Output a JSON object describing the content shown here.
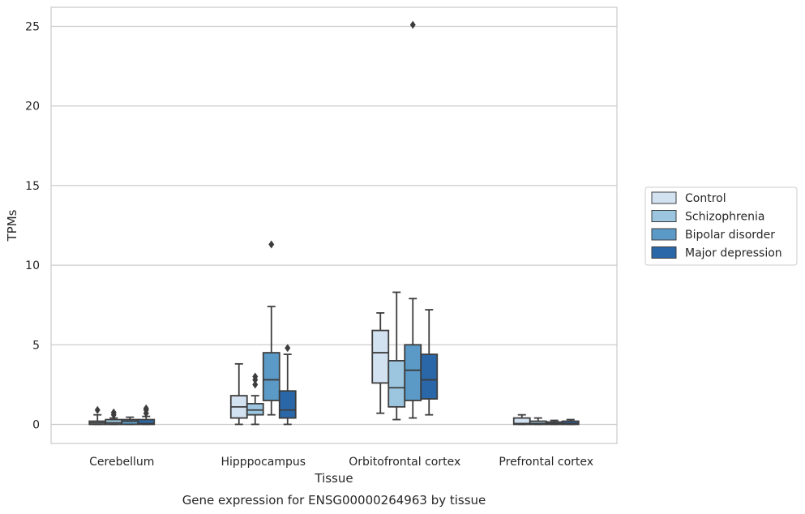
{
  "chart_data": {
    "type": "boxplot",
    "caption": "Gene expression for ENSG00000264963 by tissue",
    "xlabel": "Tissue",
    "ylabel": "TPMs",
    "ylim": [
      -1.2,
      26.2
    ],
    "yticks": [
      0,
      5,
      10,
      15,
      20,
      25
    ],
    "grid": "horizontal",
    "legend_position": "right",
    "categories": [
      "Cerebellum",
      "Hipppocampus",
      "Orbitofrontal cortex",
      "Prefrontal cortex"
    ],
    "series": [
      {
        "name": "Control",
        "color": "#d3e2f1",
        "boxes": [
          {
            "whisker_low": 0.0,
            "q1": 0.0,
            "median": 0.1,
            "q3": 0.2,
            "whisker_high": 0.6,
            "outliers": [
              0.9
            ]
          },
          {
            "whisker_low": 0.0,
            "q1": 0.4,
            "median": 1.1,
            "q3": 1.8,
            "whisker_high": 3.8,
            "outliers": []
          },
          {
            "whisker_low": 0.7,
            "q1": 2.6,
            "median": 4.5,
            "q3": 5.9,
            "whisker_high": 7.0,
            "outliers": []
          },
          {
            "whisker_low": 0.0,
            "q1": 0.0,
            "median": 0.05,
            "q3": 0.4,
            "whisker_high": 0.6,
            "outliers": []
          }
        ]
      },
      {
        "name": "Schizophrenia",
        "color": "#9cc6df",
        "boxes": [
          {
            "whisker_low": 0.0,
            "q1": 0.0,
            "median": 0.1,
            "q3": 0.3,
            "whisker_high": 0.4,
            "outliers": [
              0.6,
              0.75
            ]
          },
          {
            "whisker_low": 0.0,
            "q1": 0.6,
            "median": 0.9,
            "q3": 1.3,
            "whisker_high": 1.8,
            "outliers": [
              2.5,
              2.8,
              3.0
            ]
          },
          {
            "whisker_low": 0.3,
            "q1": 1.1,
            "median": 2.3,
            "q3": 4.0,
            "whisker_high": 8.3,
            "outliers": []
          },
          {
            "whisker_low": 0.0,
            "q1": 0.0,
            "median": 0.05,
            "q3": 0.2,
            "whisker_high": 0.4,
            "outliers": []
          }
        ]
      },
      {
        "name": "Bipolar disorder",
        "color": "#5b9ac6",
        "boxes": [
          {
            "whisker_low": 0.0,
            "q1": 0.0,
            "median": 0.2,
            "q3": 0.3,
            "whisker_high": 0.45,
            "outliers": []
          },
          {
            "whisker_low": 0.6,
            "q1": 1.5,
            "median": 2.8,
            "q3": 4.5,
            "whisker_high": 7.4,
            "outliers": [
              11.3
            ]
          },
          {
            "whisker_low": 0.4,
            "q1": 1.5,
            "median": 3.4,
            "q3": 5.0,
            "whisker_high": 7.9,
            "outliers": [
              25.1
            ]
          },
          {
            "whisker_low": 0.0,
            "q1": 0.0,
            "median": 0.05,
            "q3": 0.15,
            "whisker_high": 0.25,
            "outliers": []
          }
        ]
      },
      {
        "name": "Major depression",
        "color": "#2a67a8",
        "boxes": [
          {
            "whisker_low": 0.0,
            "q1": 0.0,
            "median": 0.05,
            "q3": 0.3,
            "whisker_high": 0.5,
            "outliers": [
              0.7,
              0.9,
              1.0
            ]
          },
          {
            "whisker_low": 0.0,
            "q1": 0.4,
            "median": 0.9,
            "q3": 2.1,
            "whisker_high": 4.4,
            "outliers": [
              4.8
            ]
          },
          {
            "whisker_low": 0.6,
            "q1": 1.6,
            "median": 2.8,
            "q3": 4.4,
            "whisker_high": 7.2,
            "outliers": []
          },
          {
            "whisker_low": 0.0,
            "q1": 0.0,
            "median": 0.05,
            "q3": 0.2,
            "whisker_high": 0.3,
            "outliers": []
          }
        ]
      }
    ]
  }
}
